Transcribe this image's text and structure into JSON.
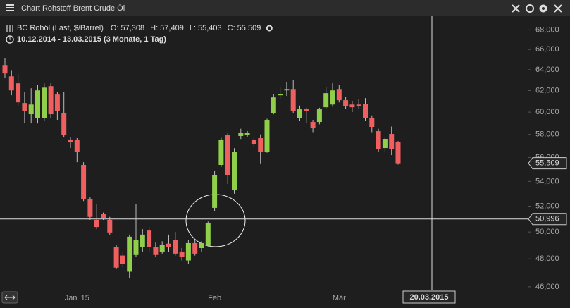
{
  "header": {
    "title": "Chart Rohstoff Brent Crude Öl"
  },
  "chart_data": {
    "type": "candlestick",
    "subtitle": "10.12.2014 - 13.03.2015 (3 Monate, 1 Tag)",
    "log_scale": true,
    "grid": false,
    "up_color": "#8fcf4a",
    "down_color": "#ef5f5f",
    "categories": [
      null,
      null,
      null,
      null,
      null,
      null,
      null,
      null,
      null,
      null,
      null,
      "Jan '15",
      null,
      null,
      null,
      null,
      null,
      null,
      null,
      null,
      null,
      null,
      null,
      null,
      null,
      null,
      null,
      null,
      null,
      null,
      null,
      null,
      "Feb",
      null,
      null,
      null,
      null,
      null,
      null,
      null,
      null,
      null,
      null,
      null,
      null,
      null,
      null,
      null,
      null,
      null,
      null,
      "Mär",
      null,
      null,
      null,
      null,
      null,
      null,
      null,
      null,
      null
    ],
    "series": [
      {
        "name": "BC Rohöl (Last, $/Barrel)",
        "open": [
          64.46,
          63.36,
          62.69,
          60.84,
          59.81,
          59.49,
          59.49,
          62.42,
          61.63,
          59.94,
          57.55,
          57.55,
          55.37,
          52.58,
          50.93,
          51.37,
          50.93,
          48.89,
          48.24,
          47.07,
          48.28,
          48.89,
          50.11,
          48.89,
          48.48,
          49.12,
          49.42,
          48.48,
          47.88,
          49.16,
          48.79,
          48.96,
          51.87,
          55.37,
          57.92,
          53.27,
          57.86,
          57.92,
          57.55,
          57.67,
          56.51,
          59.94,
          61.56,
          62.02,
          62.15,
          59.49,
          60.26,
          59.11,
          59.11,
          60.45,
          60.7,
          62.15,
          61.1,
          60.7,
          60.7,
          60.77,
          59.49,
          58.29,
          56.81,
          58.04,
          57.308
        ],
        "high": [
          65.15,
          63.9,
          63.57,
          61.89,
          62.22,
          62.55,
          62.69,
          62.69,
          61.89,
          61.89,
          57.73,
          57.67,
          55.6,
          52.7,
          52.15,
          51.5,
          51.16,
          49.0,
          48.5,
          49.8,
          52.15,
          50.22,
          50.38,
          49.2,
          49.3,
          49.8,
          50.0,
          48.8,
          49.42,
          49.42,
          49.3,
          50.8,
          54.9,
          57.7,
          58.17,
          56.8,
          58.5,
          58.3,
          57.7,
          58.0,
          59.4,
          61.7,
          62.3,
          62.8,
          63.0,
          60.6,
          60.4,
          59.3,
          60.4,
          62.3,
          62.7,
          62.5,
          61.4,
          61.0,
          61.2,
          61.3,
          59.7,
          58.5,
          57.8,
          58.7,
          57.409
        ],
        "low": [
          63.22,
          61.56,
          60.57,
          58.98,
          58.98,
          58.98,
          59.17,
          59.49,
          59.3,
          57.73,
          56.81,
          55.6,
          52.41,
          50.93,
          50.22,
          50.93,
          49.8,
          47.3,
          47.36,
          46.61,
          48.12,
          48.5,
          48.5,
          48.12,
          48.38,
          48.5,
          48.24,
          47.88,
          47.62,
          48.24,
          48.5,
          48.9,
          51.6,
          55.2,
          53.8,
          53.0,
          57.6,
          57.8,
          56.9,
          55.5,
          56.4,
          59.8,
          61.2,
          61.5,
          59.9,
          59.2,
          59.0,
          58.2,
          58.9,
          60.3,
          60.5,
          60.9,
          60.3,
          60.0,
          60.3,
          59.2,
          58.2,
          56.5,
          56.5,
          56.2,
          55.403
        ],
        "close": [
          63.64,
          62.02,
          60.9,
          60.07,
          60.7,
          62.02,
          62.28,
          59.81,
          60.07,
          57.92,
          57.3,
          56.51,
          52.58,
          51.16,
          50.38,
          51.04,
          49.96,
          47.36,
          47.62,
          49.64,
          49.42,
          49.8,
          48.89,
          48.28,
          49.0,
          48.89,
          48.38,
          48.12,
          49.16,
          48.38,
          49.16,
          50.71,
          54.54,
          57.55,
          54.54,
          56.45,
          58.17,
          58.11,
          57.12,
          56.51,
          59.3,
          61.36,
          61.69,
          62.15,
          60.13,
          60.26,
          60.13,
          58.54,
          60.26,
          61.76,
          62.02,
          61.1,
          60.57,
          60.45,
          60.57,
          59.49,
          58.67,
          56.69,
          57.61,
          56.69,
          55.509
        ]
      }
    ],
    "readout": [
      {
        "key": "O:",
        "label": "57,308"
      },
      {
        "key": "H:",
        "label": "57,409"
      },
      {
        "key": "L:",
        "label": "55,403"
      },
      {
        "key": "C:",
        "label": "55,509"
      }
    ],
    "ylim": [
      45.75,
      69.5
    ],
    "yticks": [
      {
        "value": 46,
        "label": "46,000"
      },
      {
        "value": 48,
        "label": "48,000"
      },
      {
        "value": 50,
        "label": "50,000"
      },
      {
        "value": 52,
        "label": "52,000"
      },
      {
        "value": 54,
        "label": "54,000"
      },
      {
        "value": 56,
        "label": "56,000"
      },
      {
        "value": 58,
        "label": "58,000"
      },
      {
        "value": 60,
        "label": "60,000"
      },
      {
        "value": 62,
        "label": "62,000"
      },
      {
        "value": 64,
        "label": "64,000"
      },
      {
        "value": 66,
        "label": "66,000"
      },
      {
        "value": 68,
        "label": "68,000"
      }
    ],
    "last_price": {
      "value": 55.509,
      "label": "55,509"
    },
    "crosshair": {
      "y": {
        "value": 50.996,
        "label": "50,996"
      },
      "x_label": "20.03.2015"
    }
  }
}
